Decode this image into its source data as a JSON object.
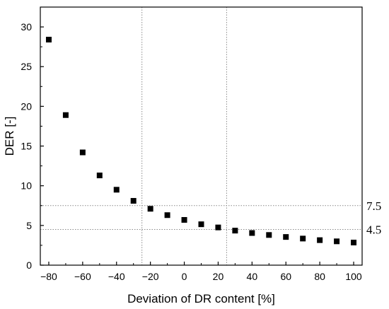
{
  "chart_data": {
    "type": "scatter",
    "title": "",
    "xlabel": "Deviation of DR content [%]",
    "ylabel": "DER [-]",
    "xlim": [
      -85,
      105
    ],
    "ylim": [
      0,
      32.5
    ],
    "x_ticks": [
      -80,
      -60,
      -40,
      -20,
      0,
      20,
      40,
      60,
      80,
      100
    ],
    "x_tick_labels": [
      "−80",
      "−60",
      "−40",
      "−20",
      "0",
      "20",
      "40",
      "60",
      "80",
      "100"
    ],
    "y_ticks": [
      0,
      5,
      10,
      15,
      20,
      25,
      30
    ],
    "y_tick_labels": [
      "0",
      "5",
      "10",
      "15",
      "20",
      "25",
      "30"
    ],
    "grid": false,
    "legend": "none",
    "marker": "square",
    "marker_color": "#000000",
    "series": [
      {
        "points": [
          {
            "x": -80,
            "y": 28.4
          },
          {
            "x": -70,
            "y": 18.9
          },
          {
            "x": -60,
            "y": 14.2
          },
          {
            "x": -50,
            "y": 11.3
          },
          {
            "x": -40,
            "y": 9.5
          },
          {
            "x": -30,
            "y": 8.1
          },
          {
            "x": -20,
            "y": 7.1
          },
          {
            "x": -10,
            "y": 6.3
          },
          {
            "x": 0,
            "y": 5.7
          },
          {
            "x": 10,
            "y": 5.15
          },
          {
            "x": 20,
            "y": 4.75
          },
          {
            "x": 30,
            "y": 4.35
          },
          {
            "x": 40,
            "y": 4.05
          },
          {
            "x": 50,
            "y": 3.8
          },
          {
            "x": 60,
            "y": 3.55
          },
          {
            "x": 70,
            "y": 3.35
          },
          {
            "x": 80,
            "y": 3.15
          },
          {
            "x": 90,
            "y": 3.0
          },
          {
            "x": 100,
            "y": 2.85
          }
        ]
      }
    ],
    "reference_lines": {
      "horizontal": [
        {
          "y": 7.5,
          "label": "7.5"
        },
        {
          "y": 4.5,
          "label": "4.5"
        }
      ],
      "vertical": [
        {
          "x": -25
        },
        {
          "x": 25
        }
      ],
      "style": "dotted",
      "color": "#8a8a8a"
    }
  }
}
